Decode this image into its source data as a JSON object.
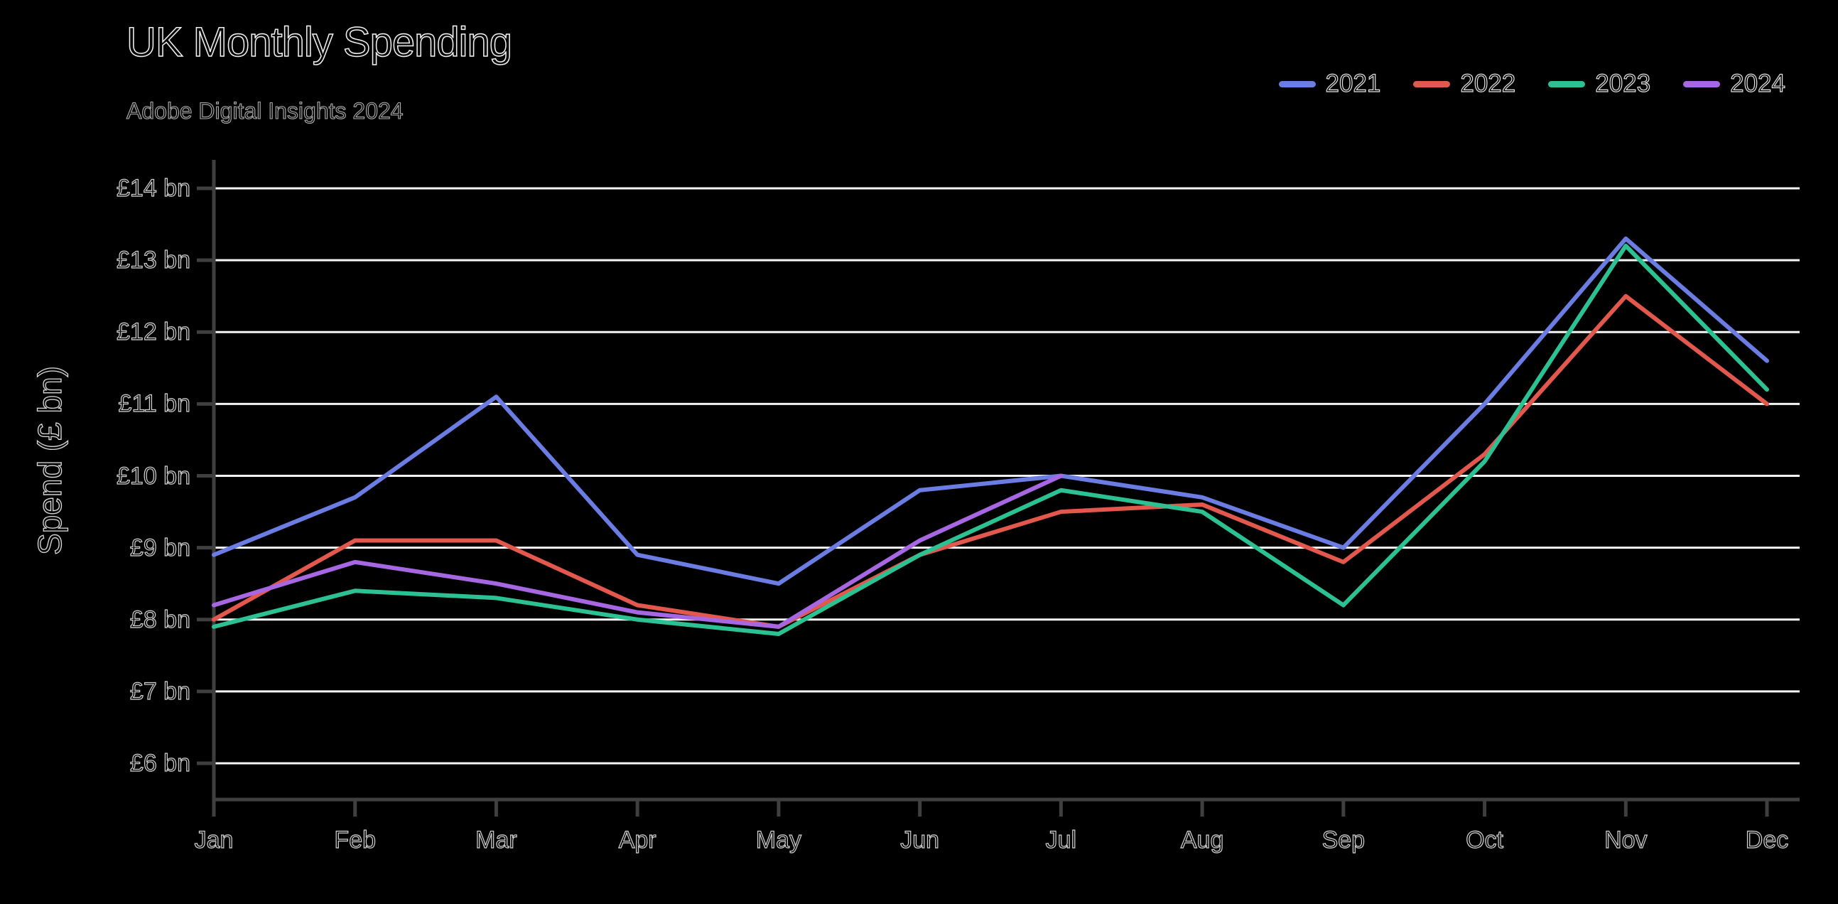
{
  "title": "UK Monthly Spending",
  "subtitle": "Adobe Digital Insights 2024",
  "y_axis_title": "Spend (£ bn)",
  "colors": {
    "background": "#000000",
    "gridline": "#f5f5f5",
    "axis": "#3f3f3f",
    "text_fill": "#050505",
    "text_outline": "#ffffff"
  },
  "chart_data": {
    "type": "line",
    "title": "UK Monthly Spending",
    "subtitle": "Adobe Digital Insights 2024",
    "xlabel": "",
    "ylabel": "Spend (£ bn)",
    "categories": [
      "Jan",
      "Feb",
      "Mar",
      "Apr",
      "May",
      "Jun",
      "Jul",
      "Aug",
      "Sep",
      "Oct",
      "Nov",
      "Dec"
    ],
    "ylim": [
      6,
      14
    ],
    "grid": "horizontal",
    "legend_position": "top-right",
    "y_ticks": [
      {
        "value": 6,
        "label": "£6 bn"
      },
      {
        "value": 7,
        "label": "£7 bn"
      },
      {
        "value": 8,
        "label": "£8 bn"
      },
      {
        "value": 9,
        "label": "£9 bn"
      },
      {
        "value": 10,
        "label": "£10 bn"
      },
      {
        "value": 11,
        "label": "£11 bn"
      },
      {
        "value": 12,
        "label": "£12 bn"
      },
      {
        "value": 13,
        "label": "£13 bn"
      },
      {
        "value": 14,
        "label": "£14 bn"
      }
    ],
    "series": [
      {
        "name": "2021",
        "color": "#6b7ce3",
        "values": [
          8.9,
          9.7,
          11.1,
          8.9,
          8.5,
          9.8,
          10.0,
          9.7,
          9.0,
          11.0,
          13.3,
          11.6
        ]
      },
      {
        "name": "2022",
        "color": "#e2584c",
        "values": [
          8.0,
          9.1,
          9.1,
          8.2,
          7.9,
          8.9,
          9.5,
          9.6,
          8.8,
          10.3,
          12.5,
          11.0
        ]
      },
      {
        "name": "2023",
        "color": "#2cc192",
        "values": [
          7.9,
          8.4,
          8.3,
          8.0,
          7.8,
          8.9,
          9.8,
          9.5,
          8.2,
          10.2,
          13.2,
          11.2
        ]
      },
      {
        "name": "2024",
        "color": "#a767e2",
        "values": [
          8.2,
          8.8,
          8.5,
          8.1,
          7.9,
          9.1,
          10.0,
          null,
          null,
          null,
          null,
          null
        ]
      }
    ]
  }
}
